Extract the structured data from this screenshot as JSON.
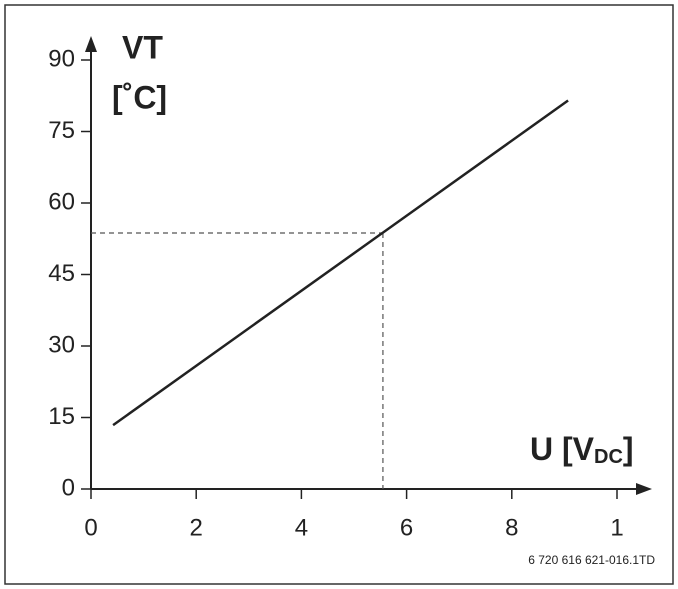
{
  "chart_data": {
    "type": "line",
    "ylabel": [
      "VT",
      "[˚C]"
    ],
    "xlabel": {
      "main": "U [V",
      "sub": "DC",
      "end": "]"
    },
    "footnote": "6 720 616 621-016.1TD",
    "x": [
      0.42,
      9.07
    ],
    "series": [
      {
        "color": "#222222",
        "values": [
          13.4,
          81.5
        ]
      }
    ],
    "guide": {
      "x": 5.55,
      "y": 53.7
    },
    "xlim": [
      0,
      10
    ],
    "xticks": [
      0,
      2,
      4,
      6,
      8,
      {
        "value": 10,
        "label": "1"
      }
    ],
    "ylim": [
      0,
      90
    ],
    "yticks": [
      0,
      15,
      30,
      45,
      60,
      75,
      90
    ]
  }
}
